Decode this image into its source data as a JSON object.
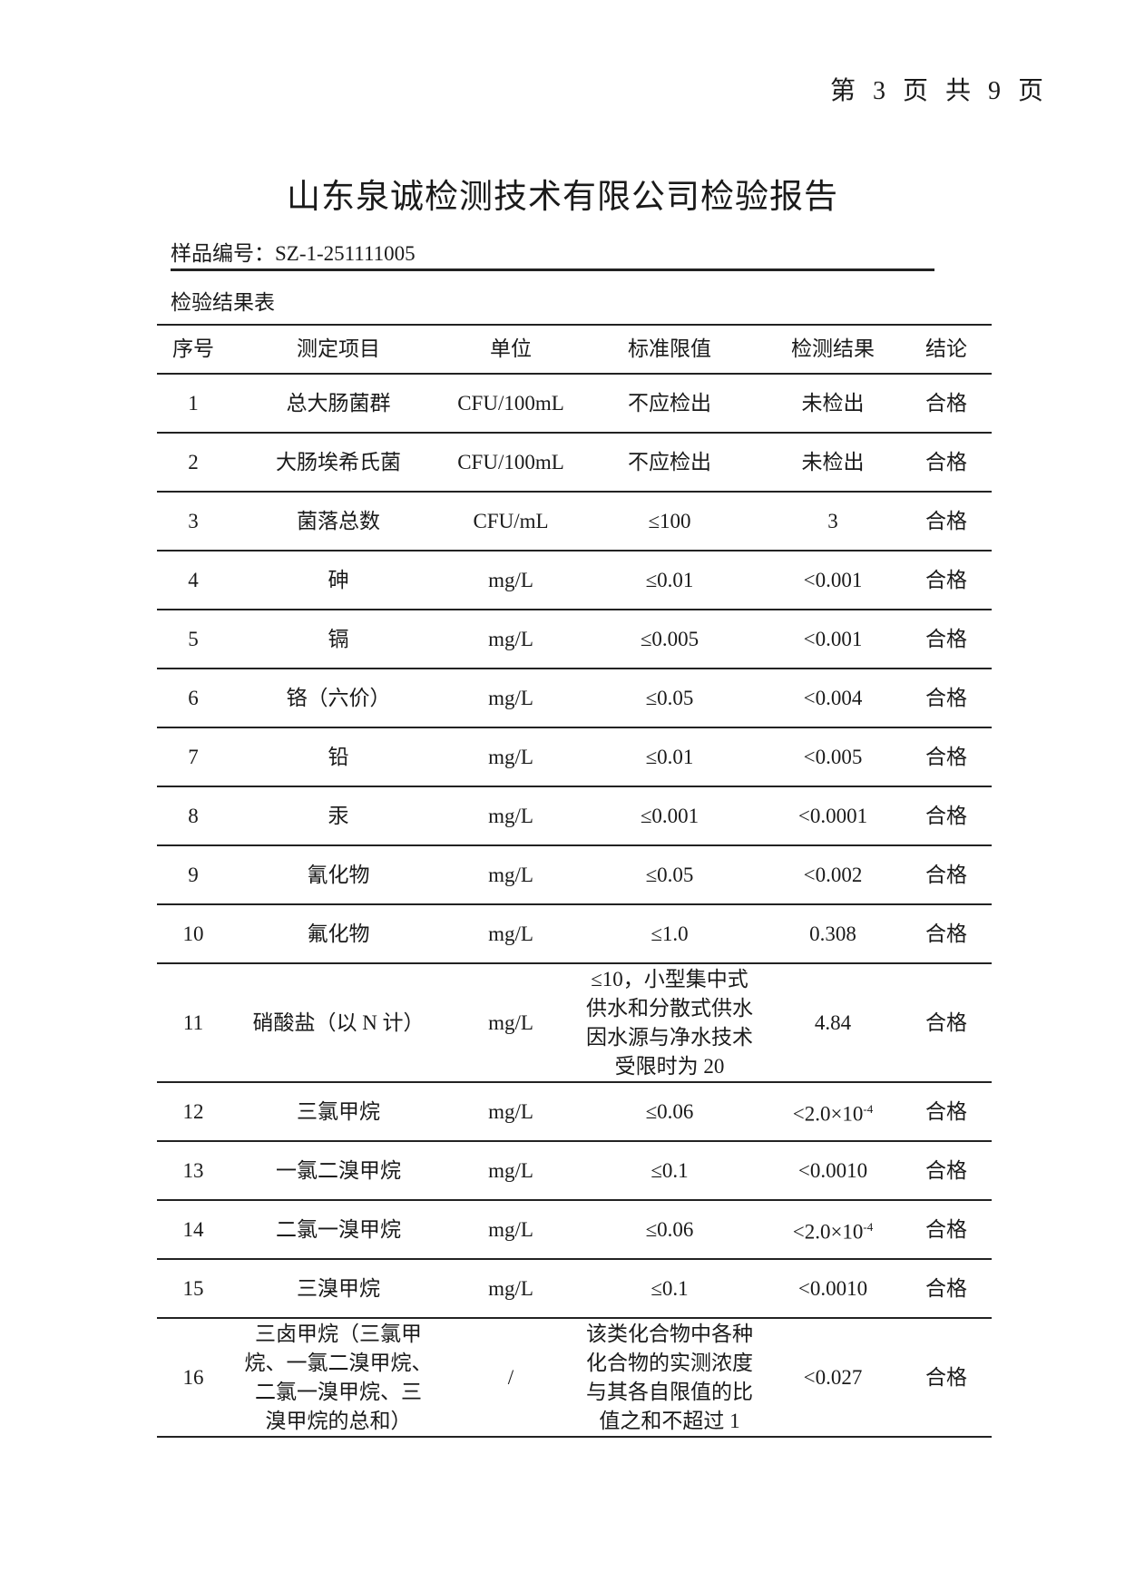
{
  "page_number": "第 3 页 共 9 页",
  "title": "山东泉诚检测技术有限公司检验报告",
  "sample_label": "样品编号：",
  "sample_id": "SZ-1-251111005",
  "table_title": "检验结果表",
  "columns": [
    "序号",
    "测定项目",
    "单位",
    "标准限值",
    "检测结果",
    "结论"
  ],
  "rows": [
    {
      "no": "1",
      "item": "总大肠菌群",
      "unit": "CFU/100mL",
      "limit": "不应检出",
      "result": "未检出",
      "conclusion": "合格"
    },
    {
      "no": "2",
      "item": "大肠埃希氏菌",
      "unit": "CFU/100mL",
      "limit": "不应检出",
      "result": "未检出",
      "conclusion": "合格"
    },
    {
      "no": "3",
      "item": "菌落总数",
      "unit": "CFU/mL",
      "limit": "≤100",
      "result": "3",
      "conclusion": "合格"
    },
    {
      "no": "4",
      "item": "砷",
      "unit": "mg/L",
      "limit": "≤0.01",
      "result": "<0.001",
      "conclusion": "合格"
    },
    {
      "no": "5",
      "item": "镉",
      "unit": "mg/L",
      "limit": "≤0.005",
      "result": "<0.001",
      "conclusion": "合格"
    },
    {
      "no": "6",
      "item": "铬（六价）",
      "unit": "mg/L",
      "limit": "≤0.05",
      "result": "<0.004",
      "conclusion": "合格"
    },
    {
      "no": "7",
      "item": "铅",
      "unit": "mg/L",
      "limit": "≤0.01",
      "result": "<0.005",
      "conclusion": "合格"
    },
    {
      "no": "8",
      "item": "汞",
      "unit": "mg/L",
      "limit": "≤0.001",
      "result": "<0.0001",
      "conclusion": "合格"
    },
    {
      "no": "9",
      "item": "氰化物",
      "unit": "mg/L",
      "limit": "≤0.05",
      "result": "<0.002",
      "conclusion": "合格"
    },
    {
      "no": "10",
      "item": "氟化物",
      "unit": "mg/L",
      "limit": "≤1.0",
      "result": "0.308",
      "conclusion": "合格"
    },
    {
      "no": "11",
      "item": "硝酸盐（以 N 计）",
      "unit": "mg/L",
      "limit": "≤10，小型集中式\n供水和分散式供水\n因水源与净水技术\n受限时为 20",
      "result": "4.84",
      "conclusion": "合格"
    },
    {
      "no": "12",
      "item": "三氯甲烷",
      "unit": "mg/L",
      "limit": "≤0.06",
      "result": "<2.0×10",
      "result_exp": "-4",
      "conclusion": "合格"
    },
    {
      "no": "13",
      "item": "一氯二溴甲烷",
      "unit": "mg/L",
      "limit": "≤0.1",
      "result": "<0.0010",
      "conclusion": "合格"
    },
    {
      "no": "14",
      "item": "二氯一溴甲烷",
      "unit": "mg/L",
      "limit": "≤0.06",
      "result": "<2.0×10",
      "result_exp": "-4",
      "conclusion": "合格"
    },
    {
      "no": "15",
      "item": "三溴甲烷",
      "unit": "mg/L",
      "limit": "≤0.1",
      "result": "<0.0010",
      "conclusion": "合格"
    },
    {
      "no": "16",
      "item": "三卤甲烷（三氯甲\n烷、一氯二溴甲烷、\n二氯一溴甲烷、三\n溴甲烷的总和）",
      "unit": "/",
      "limit": "该类化合物中各种\n化合物的实测浓度\n与其各自限值的比\n值之和不超过 1",
      "result": "<0.027",
      "conclusion": "合格"
    }
  ]
}
